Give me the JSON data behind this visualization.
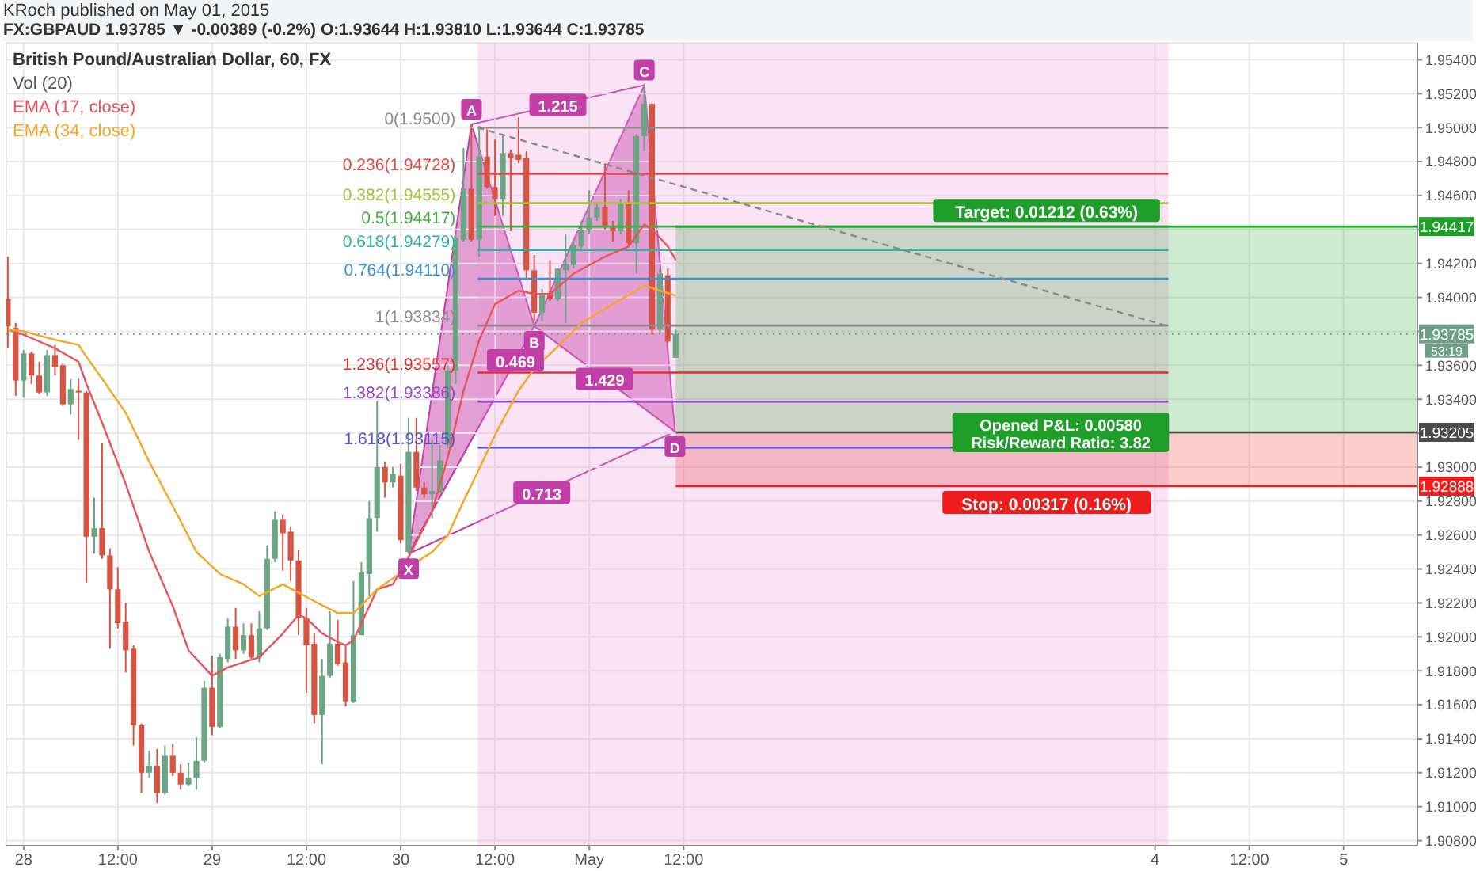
{
  "chart_data": {
    "type": "candlestick",
    "title": "British Pound/Australian Dollar, 60, FX",
    "subtitle": "FX:GBPAUD 1.93785 ▼ -0.00389 (-0.2%) O:1.93644 H:1.93810 L:1.93644 C:1.93785",
    "xlim": [
      "2015-04-27T21:48",
      "2015-05-05T09:24"
    ],
    "ylim": [
      1.9077,
      1.955
    ],
    "xticks": [
      {
        "value": "2015-04-28T00:00",
        "label": "28"
      },
      {
        "value": "2015-04-28T12:00",
        "label": "12:00"
      },
      {
        "value": "2015-04-29T00:00",
        "label": "29"
      },
      {
        "value": "2015-04-29T12:00",
        "label": "12:00"
      },
      {
        "value": "2015-04-30T00:00",
        "label": "30"
      },
      {
        "value": "2015-04-30T12:00",
        "label": "12:00"
      },
      {
        "value": "2015-05-01T00:00",
        "label": "May"
      },
      {
        "value": "2015-05-01T12:00",
        "label": "12:00"
      },
      {
        "value": "2015-05-04T00:00",
        "label": "4"
      },
      {
        "value": "2015-05-04T12:00",
        "label": "12:00"
      },
      {
        "value": "2015-05-05T00:00",
        "label": "5"
      }
    ],
    "yticks": [
      {
        "value": 1.908,
        "label": "1.90800"
      },
      {
        "value": 1.91,
        "label": "1.91000"
      },
      {
        "value": 1.912,
        "label": "1.91200"
      },
      {
        "value": 1.914,
        "label": "1.91400"
      },
      {
        "value": 1.916,
        "label": "1.91600"
      },
      {
        "value": 1.918,
        "label": "1.91800"
      },
      {
        "value": 1.92,
        "label": "1.92000"
      },
      {
        "value": 1.922,
        "label": "1.92200"
      },
      {
        "value": 1.924,
        "label": "1.92400"
      },
      {
        "value": 1.926,
        "label": "1.92600"
      },
      {
        "value": 1.928,
        "label": "1.92800"
      },
      {
        "value": 1.93,
        "label": "1.93000"
      },
      {
        "value": 1.932,
        "label": null
      },
      {
        "value": 1.934,
        "label": "1.93400"
      },
      {
        "value": 1.936,
        "label": "1.93600"
      },
      {
        "value": 1.938,
        "label": null
      },
      {
        "value": 1.94,
        "label": "1.94000"
      },
      {
        "value": 1.942,
        "label": "1.94200"
      },
      {
        "value": 1.944,
        "label": null
      },
      {
        "value": 1.946,
        "label": "1.94600"
      },
      {
        "value": 1.948,
        "label": "1.94800"
      },
      {
        "value": 1.95,
        "label": "1.95000"
      },
      {
        "value": 1.952,
        "label": "1.95200"
      },
      {
        "value": 1.954,
        "label": "1.95400"
      }
    ],
    "grid": true,
    "legend": "top left",
    "series": [
      {
        "x": [
          "2015-04-27T22:00",
          "2015-04-27T23:00",
          "2015-04-28T00:00",
          "2015-04-28T01:00",
          "2015-04-28T02:00",
          "2015-04-28T03:00",
          "2015-04-28T04:00",
          "2015-04-28T05:00",
          "2015-04-28T06:00",
          "2015-04-28T07:00",
          "2015-04-28T08:00",
          "2015-04-28T09:00",
          "2015-04-28T10:00",
          "2015-04-28T11:00",
          "2015-04-28T12:00",
          "2015-04-28T13:00",
          "2015-04-28T14:00",
          "2015-04-28T15:00",
          "2015-04-28T16:00",
          "2015-04-28T17:00",
          "2015-04-28T18:00",
          "2015-04-28T19:00",
          "2015-04-28T20:00",
          "2015-04-28T21:00",
          "2015-04-28T22:00",
          "2015-04-28T23:00",
          "2015-04-29T00:00",
          "2015-04-29T01:00",
          "2015-04-29T02:00",
          "2015-04-29T03:00",
          "2015-04-29T04:00",
          "2015-04-29T05:00",
          "2015-04-29T06:00",
          "2015-04-29T07:00",
          "2015-04-29T08:00",
          "2015-04-29T09:00",
          "2015-04-29T10:00",
          "2015-04-29T11:00",
          "2015-04-29T12:00",
          "2015-04-29T13:00",
          "2015-04-29T14:00",
          "2015-04-29T15:00",
          "2015-04-29T16:00",
          "2015-04-29T17:00",
          "2015-04-29T18:00",
          "2015-04-29T19:00",
          "2015-04-29T20:00",
          "2015-04-29T21:00",
          "2015-04-29T22:00",
          "2015-04-29T23:00",
          "2015-04-30T00:00",
          "2015-04-30T01:00",
          "2015-04-30T02:00",
          "2015-04-30T03:00",
          "2015-04-30T04:00",
          "2015-04-30T05:00",
          "2015-04-30T06:00",
          "2015-04-30T07:00",
          "2015-04-30T08:00",
          "2015-04-30T09:00",
          "2015-04-30T10:00",
          "2015-04-30T11:00",
          "2015-04-30T12:00",
          "2015-04-30T13:00",
          "2015-04-30T14:00",
          "2015-04-30T15:00",
          "2015-04-30T16:00",
          "2015-04-30T17:00",
          "2015-04-30T18:00",
          "2015-04-30T19:00",
          "2015-04-30T20:00",
          "2015-04-30T21:00",
          "2015-04-30T22:00",
          "2015-04-30T23:00",
          "2015-05-01T00:00",
          "2015-05-01T01:00",
          "2015-05-01T02:00",
          "2015-05-01T03:00",
          "2015-05-01T04:00",
          "2015-05-01T05:00",
          "2015-05-01T06:00",
          "2015-05-01T07:00",
          "2015-05-01T08:00",
          "2015-05-01T09:00",
          "2015-05-01T10:00",
          "2015-05-01T11:00"
        ],
        "colors": [
          "#d75442",
          "#d75442",
          "#6ba583",
          "#d75442",
          "#d75442",
          "#6ba583",
          "#d75442",
          "#d75442",
          "#6ba583",
          "#d75442",
          "#d75442",
          "#6ba583",
          "#d75442",
          "#d75442",
          "#d75442",
          "#d75442",
          "#d75442",
          "#d75442",
          "#6ba583",
          "#d75442",
          "#6ba583",
          "#d75442",
          "#d75442",
          "#6ba583",
          "#6ba583",
          "#6ba583",
          "#d75442",
          "#6ba583",
          "#6ba583",
          "#d75442",
          "#6ba583",
          "#d75442",
          "#6ba583",
          "#6ba583",
          "#6ba583",
          "#d75442",
          "#d75442",
          "#d75442",
          "#d75442",
          "#d75442",
          "#6ba583",
          "#6ba583",
          "#d75442",
          "#d75442",
          "#6ba583",
          "#6ba583",
          "#6ba583",
          "#6ba583",
          "#d75442",
          "#6ba583",
          "#d75442",
          "#6ba583",
          "#d75442",
          "#d75442",
          "#6ba583",
          "#6ba583",
          "#6ba583",
          "#6ba583",
          "#6ba583",
          "#d75442",
          "#6ba583",
          "#d75442",
          "#d75442",
          "#6ba583",
          "#d75442",
          "#d75442",
          "#d75442",
          "#d75442",
          "#6ba583",
          "#d75442",
          "#6ba583",
          "#6ba583",
          "#6ba583",
          "#6ba583",
          "#6ba583",
          "#6ba583",
          "#d75442",
          "#d75442",
          "#6ba583",
          "#d75442",
          "#6ba583",
          "#6ba583",
          "#d75442",
          "#6ba583",
          "#d75442",
          "#6ba583"
        ],
        "ohlc": [
          [
            1.9399,
            1.9424,
            1.937,
            1.9383
          ],
          [
            1.9382,
            1.9385,
            1.9342,
            1.9351
          ],
          [
            1.9351,
            1.9369,
            1.9341,
            1.9367
          ],
          [
            1.9367,
            1.9368,
            1.9349,
            1.9354
          ],
          [
            1.9354,
            1.9362,
            1.9343,
            1.9344
          ],
          [
            1.9344,
            1.9369,
            1.9342,
            1.9366
          ],
          [
            1.9366,
            1.9372,
            1.9354,
            1.9359
          ],
          [
            1.936,
            1.9361,
            1.9336,
            1.9337
          ],
          [
            1.9337,
            1.9352,
            1.9331,
            1.9346
          ],
          [
            1.9345,
            1.9352,
            1.9316,
            1.9344
          ],
          [
            1.9344,
            1.9345,
            1.9232,
            1.9259
          ],
          [
            1.9259,
            1.9282,
            1.9249,
            1.9264
          ],
          [
            1.9264,
            1.9314,
            1.9246,
            1.9248
          ],
          [
            1.9248,
            1.9252,
            1.9193,
            1.9228
          ],
          [
            1.9228,
            1.9241,
            1.9205,
            1.9208
          ],
          [
            1.9209,
            1.922,
            1.9179,
            1.9192
          ],
          [
            1.9193,
            1.9195,
            1.9136,
            1.9148
          ],
          [
            1.9148,
            1.9149,
            1.9108,
            1.912
          ],
          [
            1.912,
            1.9133,
            1.9117,
            1.9124
          ],
          [
            1.9124,
            1.9134,
            1.9102,
            1.9108
          ],
          [
            1.9108,
            1.9136,
            1.9107,
            1.913
          ],
          [
            1.913,
            1.9137,
            1.9118,
            1.912
          ],
          [
            1.912,
            1.9125,
            1.911,
            1.9113
          ],
          [
            1.9113,
            1.9126,
            1.9112,
            1.9117
          ],
          [
            1.9117,
            1.9141,
            1.911,
            1.9127
          ],
          [
            1.9127,
            1.9174,
            1.9126,
            1.917
          ],
          [
            1.917,
            1.9189,
            1.9142,
            1.9147
          ],
          [
            1.9147,
            1.919,
            1.9146,
            1.9188
          ],
          [
            1.9187,
            1.9211,
            1.9185,
            1.9206
          ],
          [
            1.9206,
            1.9217,
            1.9187,
            1.9192
          ],
          [
            1.9192,
            1.9208,
            1.919,
            1.9201
          ],
          [
            1.9201,
            1.9208,
            1.9187,
            1.9188
          ],
          [
            1.9188,
            1.9215,
            1.9185,
            1.9205
          ],
          [
            1.9205,
            1.9254,
            1.9204,
            1.9246
          ],
          [
            1.9246,
            1.9274,
            1.9244,
            1.9269
          ],
          [
            1.9269,
            1.9272,
            1.9239,
            1.9261
          ],
          [
            1.9262,
            1.9265,
            1.9233,
            1.9245
          ],
          [
            1.9245,
            1.9251,
            1.9201,
            1.9211
          ],
          [
            1.9211,
            1.9217,
            1.9167,
            1.9195
          ],
          [
            1.9196,
            1.9202,
            1.9149,
            1.9154
          ],
          [
            1.9154,
            1.9187,
            1.9125,
            1.9177
          ],
          [
            1.9177,
            1.9215,
            1.9176,
            1.9196
          ],
          [
            1.9196,
            1.921,
            1.9183,
            1.9184
          ],
          [
            1.9185,
            1.9196,
            1.9159,
            1.9162
          ],
          [
            1.9162,
            1.9233,
            1.9161,
            1.9201
          ],
          [
            1.9201,
            1.9244,
            1.9201,
            1.9238
          ],
          [
            1.9237,
            1.928,
            1.9224,
            1.927
          ],
          [
            1.927,
            1.9339,
            1.9262,
            1.93
          ],
          [
            1.93,
            1.9303,
            1.9282,
            1.9291
          ],
          [
            1.9291,
            1.93,
            1.9288,
            1.9296
          ],
          [
            1.9295,
            1.9302,
            1.9255,
            1.9257
          ],
          [
            1.925,
            1.9329,
            1.9249,
            1.9309
          ],
          [
            1.9309,
            1.9329,
            1.9286,
            1.9288
          ],
          [
            1.9288,
            1.9291,
            1.9282,
            1.9284
          ],
          [
            1.9284,
            1.9316,
            1.927,
            1.9286
          ],
          [
            1.9285,
            1.9313,
            1.9285,
            1.9304
          ],
          [
            1.9313,
            1.936,
            1.9311,
            1.9357
          ],
          [
            1.9357,
            1.9437,
            1.9349,
            1.9435
          ],
          [
            1.9434,
            1.9488,
            1.9433,
            1.9464
          ],
          [
            1.9464,
            1.9502,
            1.9433,
            1.9434
          ],
          [
            1.9434,
            1.9501,
            1.9424,
            1.9483
          ],
          [
            1.9483,
            1.9499,
            1.9464,
            1.9465
          ],
          [
            1.9465,
            1.9493,
            1.9448,
            1.9458
          ],
          [
            1.9458,
            1.9496,
            1.9448,
            1.9485
          ],
          [
            1.9485,
            1.9487,
            1.9439,
            1.9482
          ],
          [
            1.9484,
            1.9506,
            1.9479,
            1.9481
          ],
          [
            1.9482,
            1.9486,
            1.9411,
            1.9416
          ],
          [
            1.9416,
            1.9425,
            1.9386,
            1.9391
          ],
          [
            1.9391,
            1.9405,
            1.9386,
            1.9402
          ],
          [
            1.9402,
            1.9422,
            1.9398,
            1.9399
          ],
          [
            1.9399,
            1.9417,
            1.9398,
            1.9417
          ],
          [
            1.9416,
            1.9437,
            1.9385,
            1.942
          ],
          [
            1.9419,
            1.9433,
            1.9417,
            1.9431
          ],
          [
            1.943,
            1.9445,
            1.9429,
            1.944
          ],
          [
            1.944,
            1.9463,
            1.9437,
            1.9447
          ],
          [
            1.9447,
            1.9455,
            1.9445,
            1.9453
          ],
          [
            1.9453,
            1.9479,
            1.944,
            1.9442
          ],
          [
            1.9442,
            1.9445,
            1.9433,
            1.9439
          ],
          [
            1.9439,
            1.9458,
            1.9437,
            1.9455
          ],
          [
            1.9455,
            1.9463,
            1.943,
            1.9432
          ],
          [
            1.9432,
            1.9496,
            1.9414,
            1.9495
          ],
          [
            1.9495,
            1.9525,
            1.9486,
            1.9514
          ],
          [
            1.9514,
            1.9514,
            1.9378,
            1.9381
          ],
          [
            1.9381,
            1.9417,
            1.9379,
            1.9414
          ],
          [
            1.9413,
            1.9417,
            1.9373,
            1.9374
          ],
          [
            1.93644,
            1.9381,
            1.93644,
            1.93785
          ]
        ]
      },
      {
        "type": "line",
        "name": "EMA (17, close)",
        "color": "#e8545a",
        "x": [
          "2015-04-27T22:00",
          "2015-04-28T00:00",
          "2015-04-28T04:00",
          "2015-04-28T07:00",
          "2015-04-28T08:00",
          "2015-04-28T10:00",
          "2015-04-28T13:00",
          "2015-04-28T16:00",
          "2015-04-28T19:00",
          "2015-04-28T21:00",
          "2015-04-28T23:00",
          "2015-04-29T00:00",
          "2015-04-29T02:00",
          "2015-04-29T06:00",
          "2015-04-29T09:00",
          "2015-04-29T11:00",
          "2015-04-29T12:00",
          "2015-04-29T14:00",
          "2015-04-29T16:00",
          "2015-04-29T17:00",
          "2015-04-29T18:00",
          "2015-04-29T21:00",
          "2015-04-29T23:00",
          "2015-04-30T01:00",
          "2015-04-30T04:00",
          "2015-04-30T06:00",
          "2015-04-30T08:00",
          "2015-04-30T10:00",
          "2015-04-30T12:00",
          "2015-04-30T15:00",
          "2015-04-30T17:00",
          "2015-04-30T19:00",
          "2015-04-30T22:00",
          "2015-05-01T02:00",
          "2015-05-01T05:00",
          "2015-05-01T07:00",
          "2015-05-01T08:00",
          "2015-05-01T10:00",
          "2015-05-01T11:00"
        ],
        "values": [
          1.9381,
          1.9378,
          1.937,
          1.9362,
          1.9349,
          1.9326,
          1.929,
          1.925,
          1.9218,
          1.9192,
          1.9182,
          1.9177,
          1.9182,
          1.9188,
          1.9202,
          1.9213,
          1.9211,
          1.9202,
          1.9197,
          1.9195,
          1.9198,
          1.9228,
          1.9231,
          1.9247,
          1.9274,
          1.9306,
          1.9345,
          1.9375,
          1.9396,
          1.9404,
          1.9402,
          1.9402,
          1.9414,
          1.9424,
          1.943,
          1.9443,
          1.944,
          1.943,
          1.9422
        ]
      },
      {
        "type": "line",
        "name": "EMA (34, close)",
        "color": "#f5a623",
        "x": [
          "2015-04-27T22:00",
          "2015-04-28T00:00",
          "2015-04-28T04:00",
          "2015-04-28T07:00",
          "2015-04-28T08:00",
          "2015-04-28T10:00",
          "2015-04-28T13:00",
          "2015-04-28T16:00",
          "2015-04-28T19:00",
          "2015-04-28T22:00",
          "2015-04-29T01:00",
          "2015-04-29T04:00",
          "2015-04-29T06:00",
          "2015-04-29T09:00",
          "2015-04-29T11:00",
          "2015-04-29T13:00",
          "2015-04-29T16:00",
          "2015-04-29T18:00",
          "2015-04-29T21:00",
          "2015-04-30T01:00",
          "2015-04-30T04:00",
          "2015-04-30T06:00",
          "2015-04-30T08:00",
          "2015-04-30T10:00",
          "2015-04-30T12:00",
          "2015-04-30T15:00",
          "2015-04-30T17:00",
          "2015-04-30T20:00",
          "2015-04-30T23:00",
          "2015-05-01T03:00",
          "2015-05-01T07:00",
          "2015-05-01T09:00",
          "2015-05-01T11:00"
        ],
        "values": [
          1.9381,
          1.938,
          1.9375,
          1.9372,
          1.9365,
          1.9352,
          1.9332,
          1.9303,
          1.9277,
          1.925,
          1.9237,
          1.9231,
          1.9224,
          1.9231,
          1.9226,
          1.9221,
          1.9214,
          1.9214,
          1.9228,
          1.9241,
          1.925,
          1.926,
          1.928,
          1.9299,
          1.9319,
          1.9345,
          1.9358,
          1.9371,
          1.9385,
          1.9396,
          1.9407,
          1.9404,
          1.9401
        ]
      },
      {
        "type": "line",
        "color": "#8a8a8a",
        "line_style": "dashed",
        "x": [
          "2015-04-30T09:48",
          "2015-05-04T01:42"
        ],
        "values": [
          1.95,
          1.9383
        ]
      }
    ],
    "ref_lines": [
      {
        "axis": "y",
        "value": 1.95,
        "label": "0(1.9500)",
        "color": "#8c8c8c"
      },
      {
        "axis": "y",
        "value": 1.94728,
        "label": "0.236(1.94728)",
        "color": "#e04848"
      },
      {
        "axis": "y",
        "value": 1.94555,
        "label": "0.382(1.94555)",
        "color": "#a8c43a"
      },
      {
        "axis": "y",
        "value": 1.94417,
        "label": "0.5(1.94417)",
        "color": "#43b043"
      },
      {
        "axis": "y",
        "value": 1.94279,
        "label": "0.618(1.94279)",
        "color": "#2fb3a0"
      },
      {
        "axis": "y",
        "value": 1.9411,
        "label": "0.764(1.94110)",
        "color": "#3a93d0"
      },
      {
        "axis": "y",
        "value": 1.93834,
        "label": "1(1.93834)",
        "color": "#8c8c8c"
      },
      {
        "axis": "y",
        "value": 1.93557,
        "label": "1.236(1.93557)",
        "color": "#e03030"
      },
      {
        "axis": "y",
        "value": 1.93386,
        "label": "1.382(1.93386)",
        "color": "#9a45c8"
      },
      {
        "axis": "y",
        "value": 1.93115,
        "label": "1.618(1.93115)",
        "color": "#5a52d0"
      },
      {
        "axis": "y",
        "value": 1.93785,
        "label": "1.93785",
        "color": "#6f9e86",
        "line_style": "dotted"
      },
      {
        "axis": "y",
        "value": 1.94417,
        "label": "1.94417",
        "color": "#1f9e2a",
        "line_style": "solid"
      },
      {
        "axis": "y",
        "value": 1.93205,
        "label": "1.93205",
        "color": "#4a4a4a",
        "line_style": "solid"
      },
      {
        "axis": "y",
        "value": 1.92888,
        "label": "1.92888",
        "color": "#ee1c1c",
        "line_style": "solid"
      }
    ],
    "bands": [
      {
        "axis": "x",
        "from": "2015-04-30T09:48",
        "to": "2015-05-04T01:42",
        "color": "#ea9bd8"
      },
      {
        "axis": "y",
        "from": 1.93205,
        "to": 1.94417,
        "label": "Target: 0.01212 (0.63%)",
        "color": "#1f9e2a"
      },
      {
        "axis": "y",
        "from": 1.92888,
        "to": 1.93205,
        "label": "Stop: 0.00317 (0.16%)",
        "color": "#ee1c1c"
      }
    ],
    "annotations": [
      "KRoch published on May 01, 2015",
      "Vol (20)",
      "1.215",
      "1.429",
      "0.713",
      "0.469",
      {
        "text": "X",
        "x": "2015-04-30T01:00",
        "y": 1.9249
      },
      {
        "text": "A",
        "x": "2015-04-30T09:00",
        "y": 1.9502
      },
      {
        "text": "B",
        "x": "2015-04-30T17:00",
        "y": 1.9383
      },
      {
        "text": "C",
        "x": "2015-05-01T07:00",
        "y": 1.9525
      },
      {
        "text": "D",
        "x": "2015-05-01T10:54",
        "y": 1.9321
      },
      {
        "text": "Opened P&L: 0.00580\nRisk/Reward Ratio: 3.82",
        "x": "2015-05-03T12:00",
        "y": 1.93205
      },
      {
        "text": "53:19",
        "x": "2015-05-05T09:24",
        "y": 1.93785
      }
    ]
  }
}
